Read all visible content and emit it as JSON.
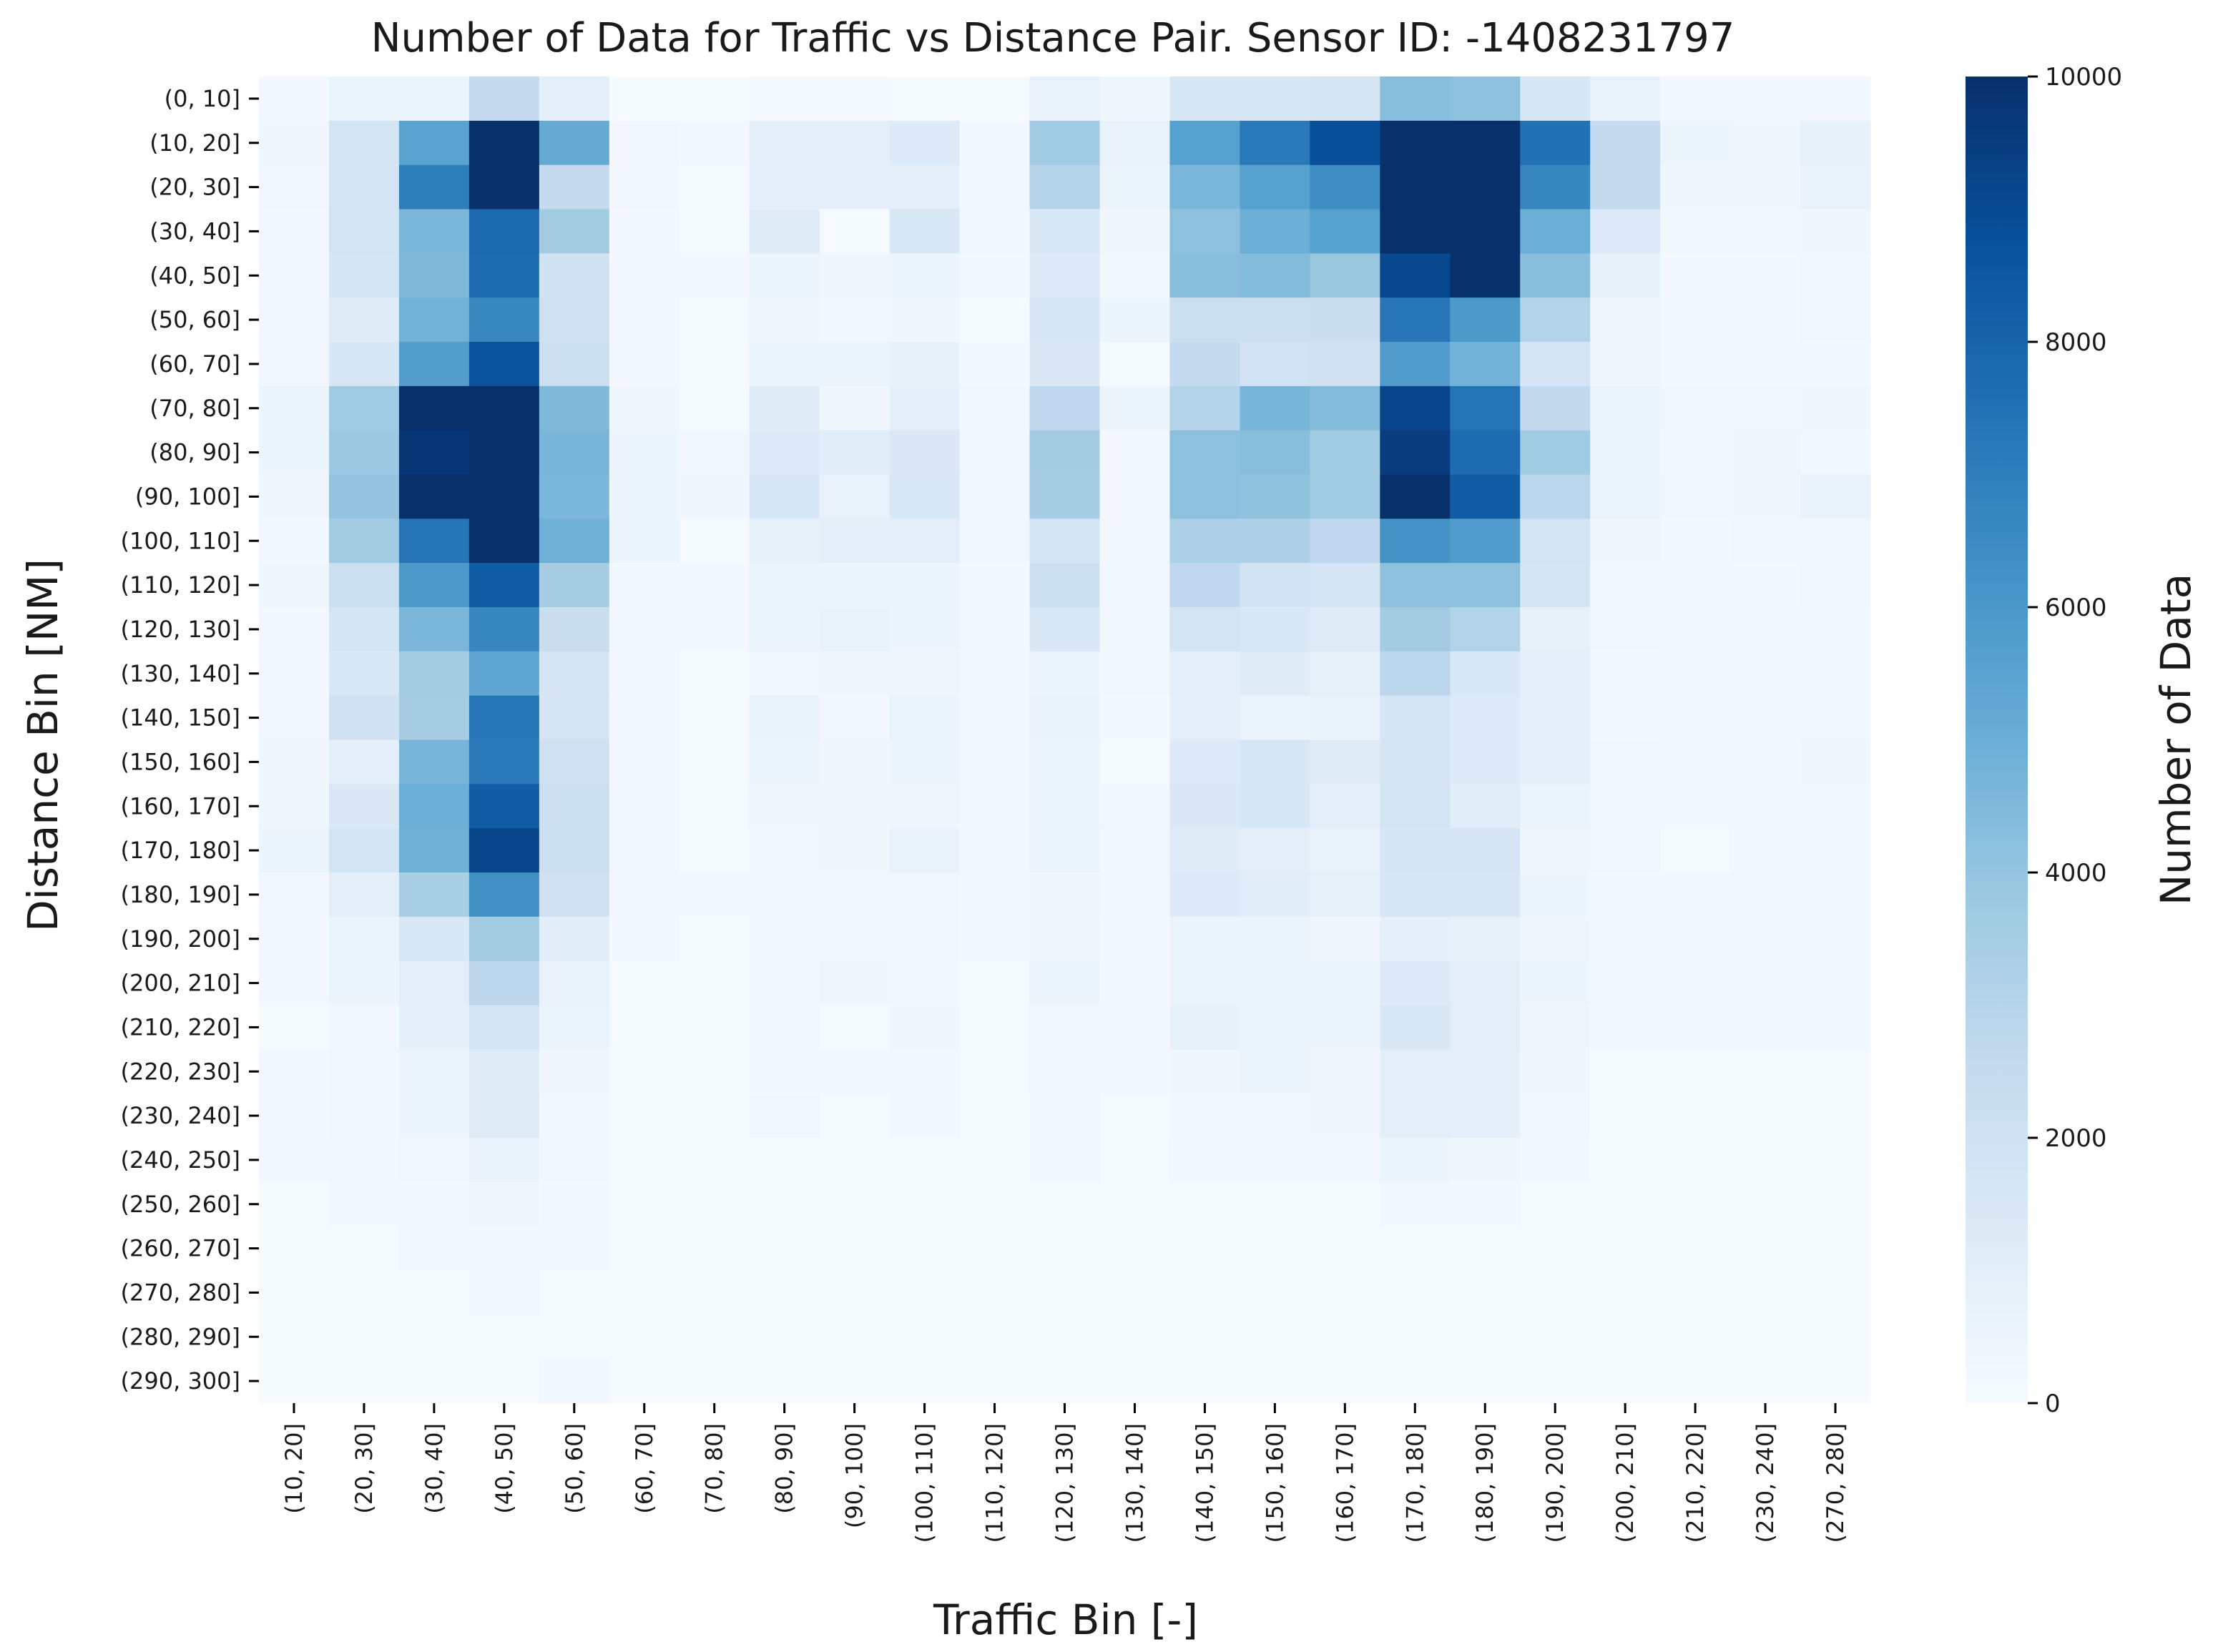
{
  "chart_data": {
    "type": "heatmap",
    "title": "Number of Data for Traffic vs Distance Pair. Sensor ID: -1408231797",
    "xlabel": "Traffic Bin [-]",
    "ylabel": "Distance Bin [NM]",
    "colorbar_label": "Number of Data",
    "colorbar_range": [
      0,
      10000
    ],
    "colorbar_ticks": [
      "0",
      "2000",
      "4000",
      "6000",
      "8000",
      "10000"
    ],
    "colormap": "Blues",
    "colormap_stops": [
      "#f7fbff",
      "#deebf7",
      "#c6dbef",
      "#9ecae1",
      "#6baed6",
      "#4292c6",
      "#2171b5",
      "#08519c",
      "#08306b"
    ],
    "x_categories": [
      "(10, 20]",
      "(20, 30]",
      "(30, 40]",
      "(40, 50]",
      "(50, 60]",
      "(60, 70]",
      "(70, 80]",
      "(80, 90]",
      "(90, 100]",
      "(100, 110]",
      "(110, 120]",
      "(120, 130]",
      "(130, 140]",
      "(140, 150]",
      "(150, 160]",
      "(160, 170]",
      "(170, 180]",
      "(180, 190]",
      "(190, 200]",
      "(200, 210]",
      "(210, 220]",
      "(230, 240]",
      "(270, 280]"
    ],
    "y_categories": [
      "(0, 10]",
      "(10, 20]",
      "(20, 30]",
      "(30, 40]",
      "(40, 50]",
      "(50, 60]",
      "(60, 70]",
      "(70, 80]",
      "(80, 90]",
      "(90, 100]",
      "(100, 110]",
      "(110, 120]",
      "(120, 130]",
      "(130, 140]",
      "(140, 150]",
      "(150, 160]",
      "(160, 170]",
      "(170, 180]",
      "(180, 190]",
      "(190, 200]",
      "(200, 210]",
      "(210, 220]",
      "(220, 230]",
      "(230, 240]",
      "(240, 250]",
      "(250, 260]",
      "(260, 270]",
      "(270, 280]",
      "(280, 290]",
      "(290, 300]"
    ],
    "values": [
      [
        200,
        600,
        600,
        2500,
        900,
        100,
        100,
        150,
        150,
        100,
        100,
        700,
        400,
        1600,
        1600,
        1700,
        4300,
        4200,
        1600,
        700,
        200,
        200,
        200
      ],
      [
        400,
        1800,
        5500,
        10000,
        5200,
        300,
        200,
        900,
        900,
        1300,
        200,
        3700,
        700,
        5600,
        7200,
        8800,
        10000,
        10000,
        7500,
        2500,
        500,
        400,
        800
      ],
      [
        300,
        1800,
        7000,
        10000,
        2500,
        300,
        100,
        900,
        1000,
        900,
        300,
        3000,
        600,
        4600,
        5600,
        6400,
        10000,
        10000,
        6700,
        2500,
        400,
        400,
        700
      ],
      [
        200,
        1800,
        4600,
        7800,
        3600,
        200,
        100,
        1200,
        100,
        1500,
        300,
        1500,
        400,
        4200,
        5000,
        5600,
        10000,
        10000,
        5000,
        1300,
        300,
        300,
        400
      ],
      [
        200,
        1700,
        4500,
        7700,
        2000,
        200,
        200,
        500,
        400,
        500,
        200,
        1300,
        300,
        4300,
        4400,
        3900,
        9100,
        10000,
        4300,
        800,
        200,
        200,
        300
      ],
      [
        300,
        1200,
        4800,
        6600,
        2100,
        200,
        100,
        400,
        300,
        400,
        100,
        1600,
        500,
        2200,
        2200,
        2300,
        7300,
        5900,
        3100,
        400,
        200,
        200,
        300
      ],
      [
        300,
        1600,
        5700,
        8700,
        2200,
        200,
        100,
        500,
        600,
        800,
        200,
        1400,
        100,
        2500,
        1900,
        2000,
        5800,
        4800,
        1700,
        400,
        200,
        200,
        200
      ],
      [
        500,
        3700,
        10000,
        10000,
        4500,
        400,
        100,
        1200,
        400,
        900,
        300,
        2700,
        600,
        3000,
        4700,
        4400,
        9200,
        7400,
        2600,
        600,
        300,
        300,
        400
      ],
      [
        500,
        3800,
        9800,
        10000,
        4700,
        500,
        300,
        1300,
        1100,
        1400,
        300,
        3600,
        300,
        4200,
        4300,
        3700,
        9500,
        7700,
        3700,
        500,
        300,
        400,
        200
      ],
      [
        400,
        4000,
        10000,
        10000,
        4600,
        500,
        400,
        1600,
        700,
        1500,
        300,
        3500,
        300,
        4200,
        4100,
        3700,
        10000,
        8300,
        2900,
        600,
        300,
        400,
        700
      ],
      [
        200,
        3600,
        7400,
        10000,
        4900,
        500,
        100,
        800,
        1000,
        1000,
        300,
        1800,
        300,
        3300,
        3300,
        2700,
        6200,
        5800,
        1800,
        400,
        200,
        300,
        300
      ],
      [
        400,
        2200,
        5900,
        8300,
        3500,
        200,
        200,
        600,
        500,
        500,
        200,
        2200,
        300,
        2700,
        1900,
        1800,
        4200,
        4200,
        1700,
        300,
        200,
        200,
        300
      ],
      [
        200,
        1700,
        4600,
        6700,
        2300,
        200,
        200,
        600,
        700,
        500,
        200,
        1500,
        300,
        1800,
        1500,
        1200,
        3600,
        3100,
        800,
        300,
        200,
        200,
        200
      ],
      [
        200,
        1500,
        3600,
        5400,
        1700,
        200,
        100,
        300,
        400,
        400,
        200,
        500,
        300,
        1000,
        1200,
        800,
        2800,
        1500,
        900,
        200,
        200,
        200,
        200
      ],
      [
        200,
        2000,
        3500,
        7300,
        1700,
        200,
        100,
        700,
        200,
        600,
        200,
        700,
        200,
        900,
        600,
        700,
        1700,
        1300,
        900,
        200,
        200,
        200,
        200
      ],
      [
        400,
        900,
        4700,
        7200,
        2100,
        200,
        100,
        600,
        400,
        600,
        200,
        600,
        100,
        1300,
        1600,
        1200,
        1700,
        1300,
        900,
        300,
        200,
        200,
        400
      ],
      [
        400,
        1400,
        5000,
        8300,
        2200,
        200,
        100,
        400,
        400,
        400,
        200,
        500,
        300,
        1400,
        1600,
        1000,
        1800,
        1100,
        600,
        300,
        200,
        200,
        200
      ],
      [
        500,
        1800,
        4900,
        9200,
        2200,
        200,
        100,
        300,
        400,
        700,
        200,
        600,
        300,
        1200,
        1000,
        700,
        1700,
        1700,
        400,
        300,
        100,
        200,
        200
      ],
      [
        300,
        1000,
        3400,
        6300,
        2100,
        200,
        200,
        300,
        300,
        300,
        200,
        400,
        300,
        1300,
        1100,
        800,
        1600,
        1600,
        500,
        200,
        200,
        200,
        200
      ],
      [
        200,
        600,
        1500,
        3600,
        1100,
        200,
        100,
        300,
        300,
        300,
        200,
        400,
        200,
        600,
        600,
        400,
        900,
        800,
        400,
        200,
        200,
        200,
        200
      ],
      [
        200,
        600,
        1000,
        2800,
        700,
        100,
        100,
        200,
        400,
        300,
        100,
        500,
        200,
        600,
        500,
        500,
        1300,
        1000,
        500,
        200,
        200,
        200,
        200
      ],
      [
        100,
        300,
        900,
        1800,
        600,
        100,
        100,
        200,
        100,
        400,
        100,
        300,
        200,
        800,
        600,
        500,
        1500,
        1000,
        400,
        200,
        200,
        200,
        200
      ],
      [
        200,
        300,
        600,
        1200,
        400,
        100,
        100,
        200,
        200,
        200,
        100,
        300,
        200,
        400,
        600,
        400,
        1000,
        900,
        400,
        100,
        100,
        100,
        100
      ],
      [
        200,
        300,
        500,
        1200,
        300,
        100,
        100,
        300,
        100,
        200,
        100,
        200,
        100,
        300,
        300,
        400,
        1000,
        900,
        300,
        100,
        100,
        100,
        100
      ],
      [
        200,
        200,
        300,
        700,
        300,
        100,
        100,
        100,
        100,
        100,
        100,
        200,
        100,
        200,
        200,
        200,
        500,
        400,
        200,
        100,
        100,
        100,
        100
      ],
      [
        100,
        200,
        200,
        400,
        200,
        100,
        100,
        100,
        100,
        100,
        100,
        100,
        100,
        100,
        100,
        100,
        200,
        200,
        100,
        100,
        100,
        100,
        100
      ],
      [
        100,
        100,
        200,
        200,
        200,
        100,
        100,
        100,
        100,
        100,
        100,
        100,
        100,
        100,
        100,
        100,
        100,
        100,
        100,
        100,
        100,
        100,
        100
      ],
      [
        100,
        100,
        100,
        200,
        100,
        100,
        100,
        100,
        100,
        100,
        100,
        100,
        100,
        100,
        100,
        100,
        100,
        100,
        100,
        100,
        100,
        100,
        100
      ],
      [
        100,
        100,
        100,
        100,
        100,
        100,
        100,
        100,
        100,
        100,
        100,
        100,
        100,
        100,
        100,
        100,
        100,
        100,
        100,
        100,
        100,
        100,
        100
      ],
      [
        100,
        100,
        100,
        100,
        200,
        100,
        100,
        100,
        100,
        100,
        100,
        100,
        100,
        100,
        100,
        100,
        100,
        100,
        100,
        100,
        100,
        100,
        100
      ]
    ]
  }
}
